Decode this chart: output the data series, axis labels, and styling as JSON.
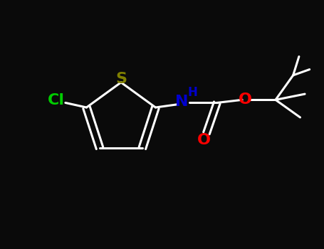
{
  "background_color": "#0a0a0a",
  "bond_color": "#ffffff",
  "S_color": "#808000",
  "N_color": "#0000CD",
  "O_color": "#FF0000",
  "Cl_color": "#00CC00",
  "lw": 2.2,
  "font_size": 15,
  "figsize": [
    4.55,
    3.5
  ],
  "dpi": 100,
  "xlim": [
    0.0,
    5.5
  ],
  "ylim": [
    0.5,
    4.0
  ]
}
